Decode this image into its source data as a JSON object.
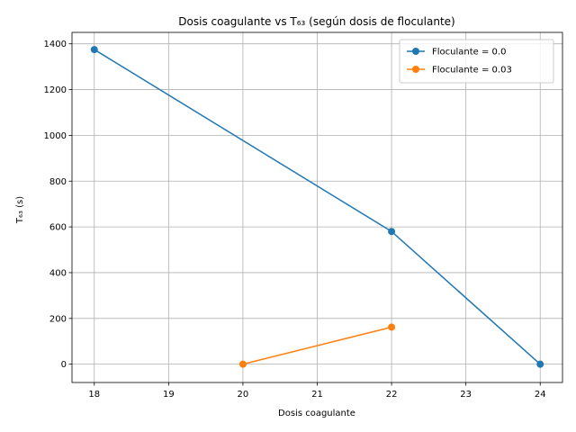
{
  "chart_data": {
    "type": "line",
    "title": "Dosis coagulante vs T₆₃ (según dosis de floculante)",
    "xlabel": "Dosis coagulante",
    "ylabel": "T₆₃ (s)",
    "xlim": [
      17.7,
      24.3
    ],
    "ylim": [
      -80,
      1450
    ],
    "xticks": [
      18,
      19,
      20,
      21,
      22,
      23,
      24
    ],
    "yticks": [
      0,
      200,
      400,
      600,
      800,
      1000,
      1200,
      1400
    ],
    "grid": true,
    "legend_position": "top-right",
    "series": [
      {
        "name": "Floculante = 0.0",
        "color": "#1f77b4",
        "x": [
          18,
          22,
          24
        ],
        "y": [
          1375,
          580,
          0
        ]
      },
      {
        "name": "Floculante = 0.03",
        "color": "#ff7f0e",
        "x": [
          20,
          22
        ],
        "y": [
          0,
          162
        ]
      }
    ]
  }
}
